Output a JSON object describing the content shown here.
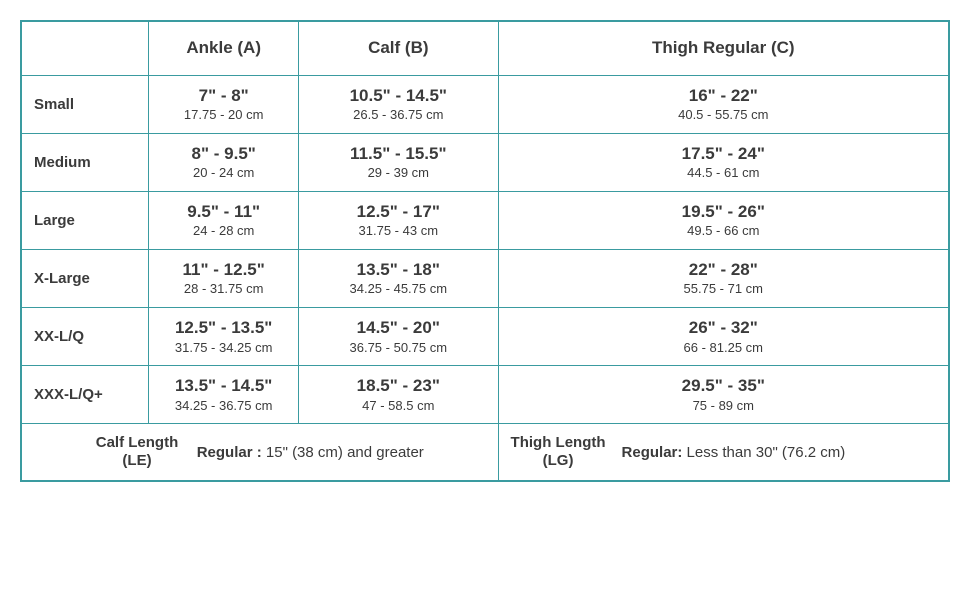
{
  "type": "table",
  "colors": {
    "border": "#3a9ba0",
    "text": "#3b3b3b",
    "background": "#ffffff"
  },
  "typography": {
    "header_fontsize_pt": 17,
    "rowlabel_fontsize_pt": 15,
    "imperial_fontsize_pt": 17,
    "metric_fontsize_pt": 13,
    "footer_fontsize_pt": 15
  },
  "columns": [
    "",
    "Ankle (A)",
    "Calf (B)",
    "Thigh Regular (C)"
  ],
  "rows": [
    {
      "label": "Small",
      "ankle": {
        "imperial": "7\" - 8\"",
        "metric": "17.75 - 20 cm"
      },
      "calf": {
        "imperial": "10.5\" - 14.5\"",
        "metric": "26.5 - 36.75 cm"
      },
      "thigh": {
        "imperial": "16\" - 22\"",
        "metric": "40.5 - 55.75 cm"
      }
    },
    {
      "label": "Medium",
      "ankle": {
        "imperial": "8\" - 9.5\"",
        "metric": "20 - 24 cm"
      },
      "calf": {
        "imperial": "11.5\" - 15.5\"",
        "metric": "29 - 39 cm"
      },
      "thigh": {
        "imperial": "17.5\" - 24\"",
        "metric": "44.5 - 61 cm"
      }
    },
    {
      "label": "Large",
      "ankle": {
        "imperial": "9.5\" - 11\"",
        "metric": "24 - 28 cm"
      },
      "calf": {
        "imperial": "12.5\" - 17\"",
        "metric": "31.75 - 43 cm"
      },
      "thigh": {
        "imperial": "19.5\" - 26\"",
        "metric": "49.5 - 66 cm"
      }
    },
    {
      "label": "X-Large",
      "ankle": {
        "imperial": "11\" - 12.5\"",
        "metric": "28 - 31.75 cm"
      },
      "calf": {
        "imperial": "13.5\" - 18\"",
        "metric": "34.25 - 45.75 cm"
      },
      "thigh": {
        "imperial": "22\" - 28\"",
        "metric": "55.75 - 71 cm"
      }
    },
    {
      "label": "XX-L/Q",
      "ankle": {
        "imperial": "12.5\" - 13.5\"",
        "metric": "31.75 - 34.25 cm"
      },
      "calf": {
        "imperial": "14.5\" - 20\"",
        "metric": "36.75 - 50.75 cm"
      },
      "thigh": {
        "imperial": "26\" - 32\"",
        "metric": "66 - 81.25 cm"
      }
    },
    {
      "label": "XXX-L/Q+",
      "ankle": {
        "imperial": "13.5\" - 14.5\"",
        "metric": "34.25 - 36.75 cm"
      },
      "calf": {
        "imperial": "18.5\" - 23\"",
        "metric": "47 - 58.5 cm"
      },
      "thigh": {
        "imperial": "29.5\" - 35\"",
        "metric": "75 - 89 cm"
      }
    }
  ],
  "footer": {
    "calf_length": {
      "label_line1": "Calf Length",
      "label_line2": "(LE)",
      "value_bold": "Regular :",
      "value_rest": " 15\" (38 cm) and greater"
    },
    "thigh_length": {
      "label_line1": "Thigh Length",
      "label_line2": "(LG)",
      "value_bold": "Regular:",
      "value_rest": " Less than 30\" (76.2 cm)"
    }
  }
}
